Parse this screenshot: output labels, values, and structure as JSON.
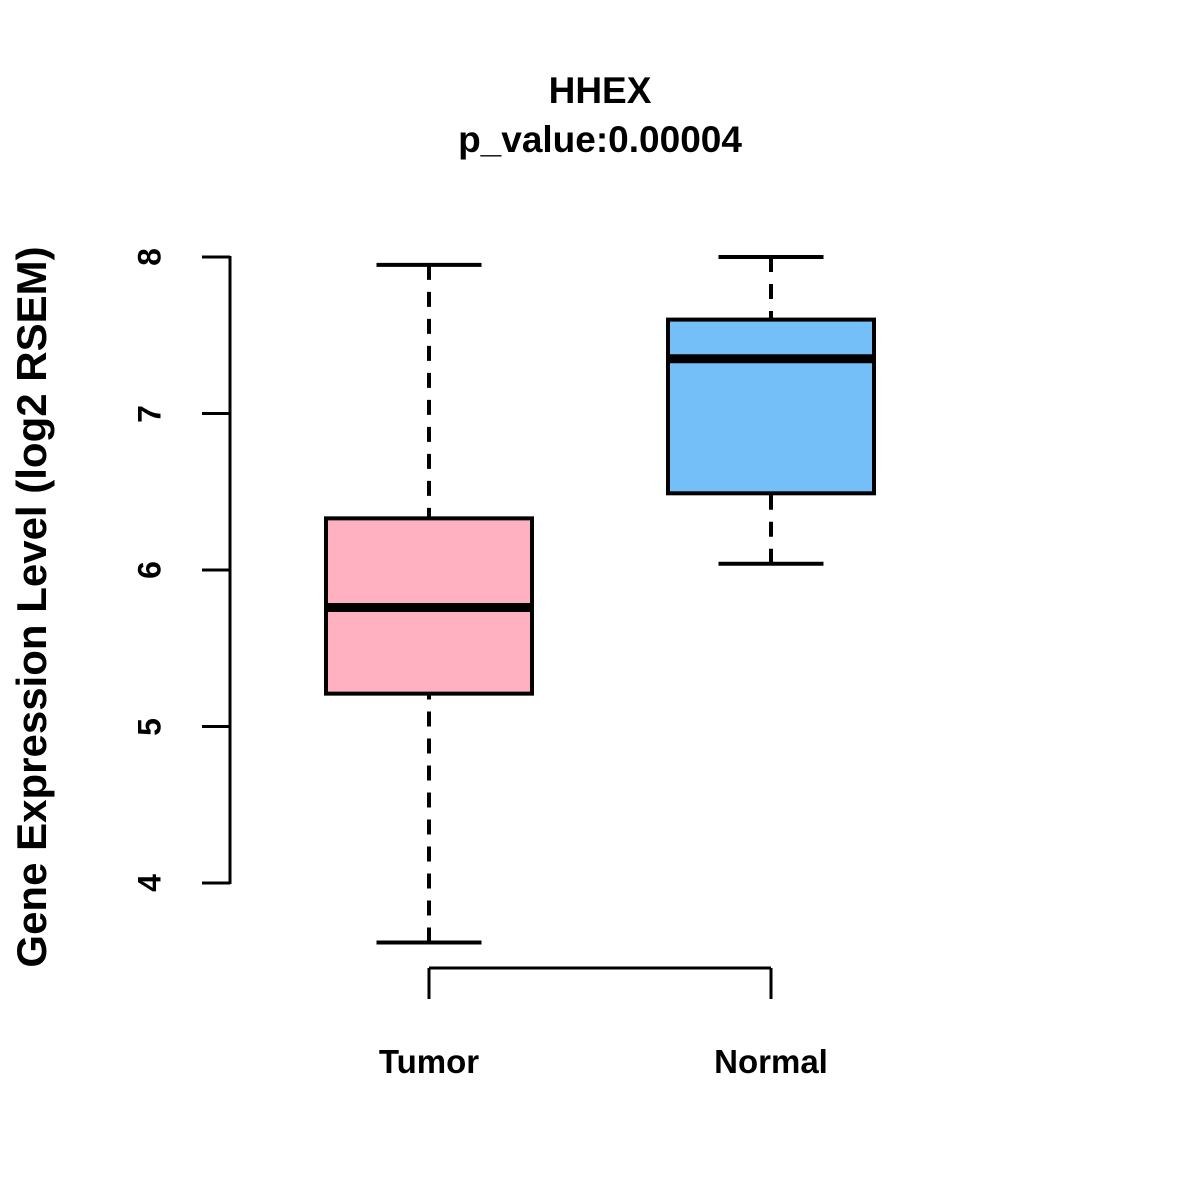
{
  "chart_data": {
    "type": "boxplot",
    "title": "HHEX",
    "subtitle": "p_value:0.00004",
    "ylabel": "Gene Expression Level (log2 RSEM)",
    "xlabel": "",
    "ylim": [
      4,
      8
    ],
    "yticks": [
      4,
      5,
      6,
      7,
      8
    ],
    "categories": [
      "Tumor",
      "Normal"
    ],
    "series": [
      {
        "name": "Tumor",
        "fill_color": "#FFB1C1",
        "whisker_low": 3.62,
        "q1": 5.21,
        "median": 5.76,
        "q3": 6.33,
        "whisker_high": 7.95
      },
      {
        "name": "Normal",
        "fill_color": "#74BFF8",
        "whisker_low": 6.04,
        "q1": 6.49,
        "median": 7.35,
        "q3": 7.6,
        "whisker_high": 8.0
      }
    ],
    "stroke_color": "#000000",
    "background_color": "#FFFFFF",
    "grid": false
  }
}
